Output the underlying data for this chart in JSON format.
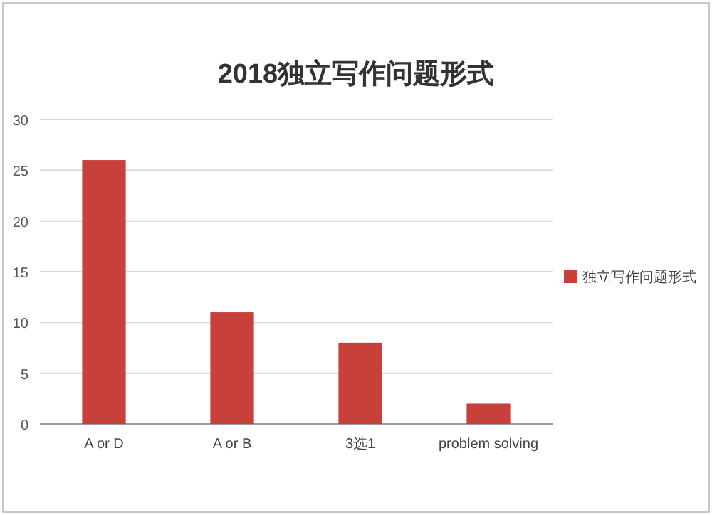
{
  "chart_data": {
    "type": "bar",
    "title": "2018独立写作问题形式",
    "categories": [
      "A or D",
      "A or B",
      "3选1",
      "problem solving"
    ],
    "series": [
      {
        "name": "独立写作问题形式",
        "color": "#c8403a",
        "values": [
          26,
          11,
          8,
          2
        ]
      }
    ],
    "ylim": [
      0,
      30
    ],
    "yticks": [
      0,
      5,
      10,
      15,
      20,
      25,
      30
    ],
    "grid": "y",
    "legend": "right"
  }
}
